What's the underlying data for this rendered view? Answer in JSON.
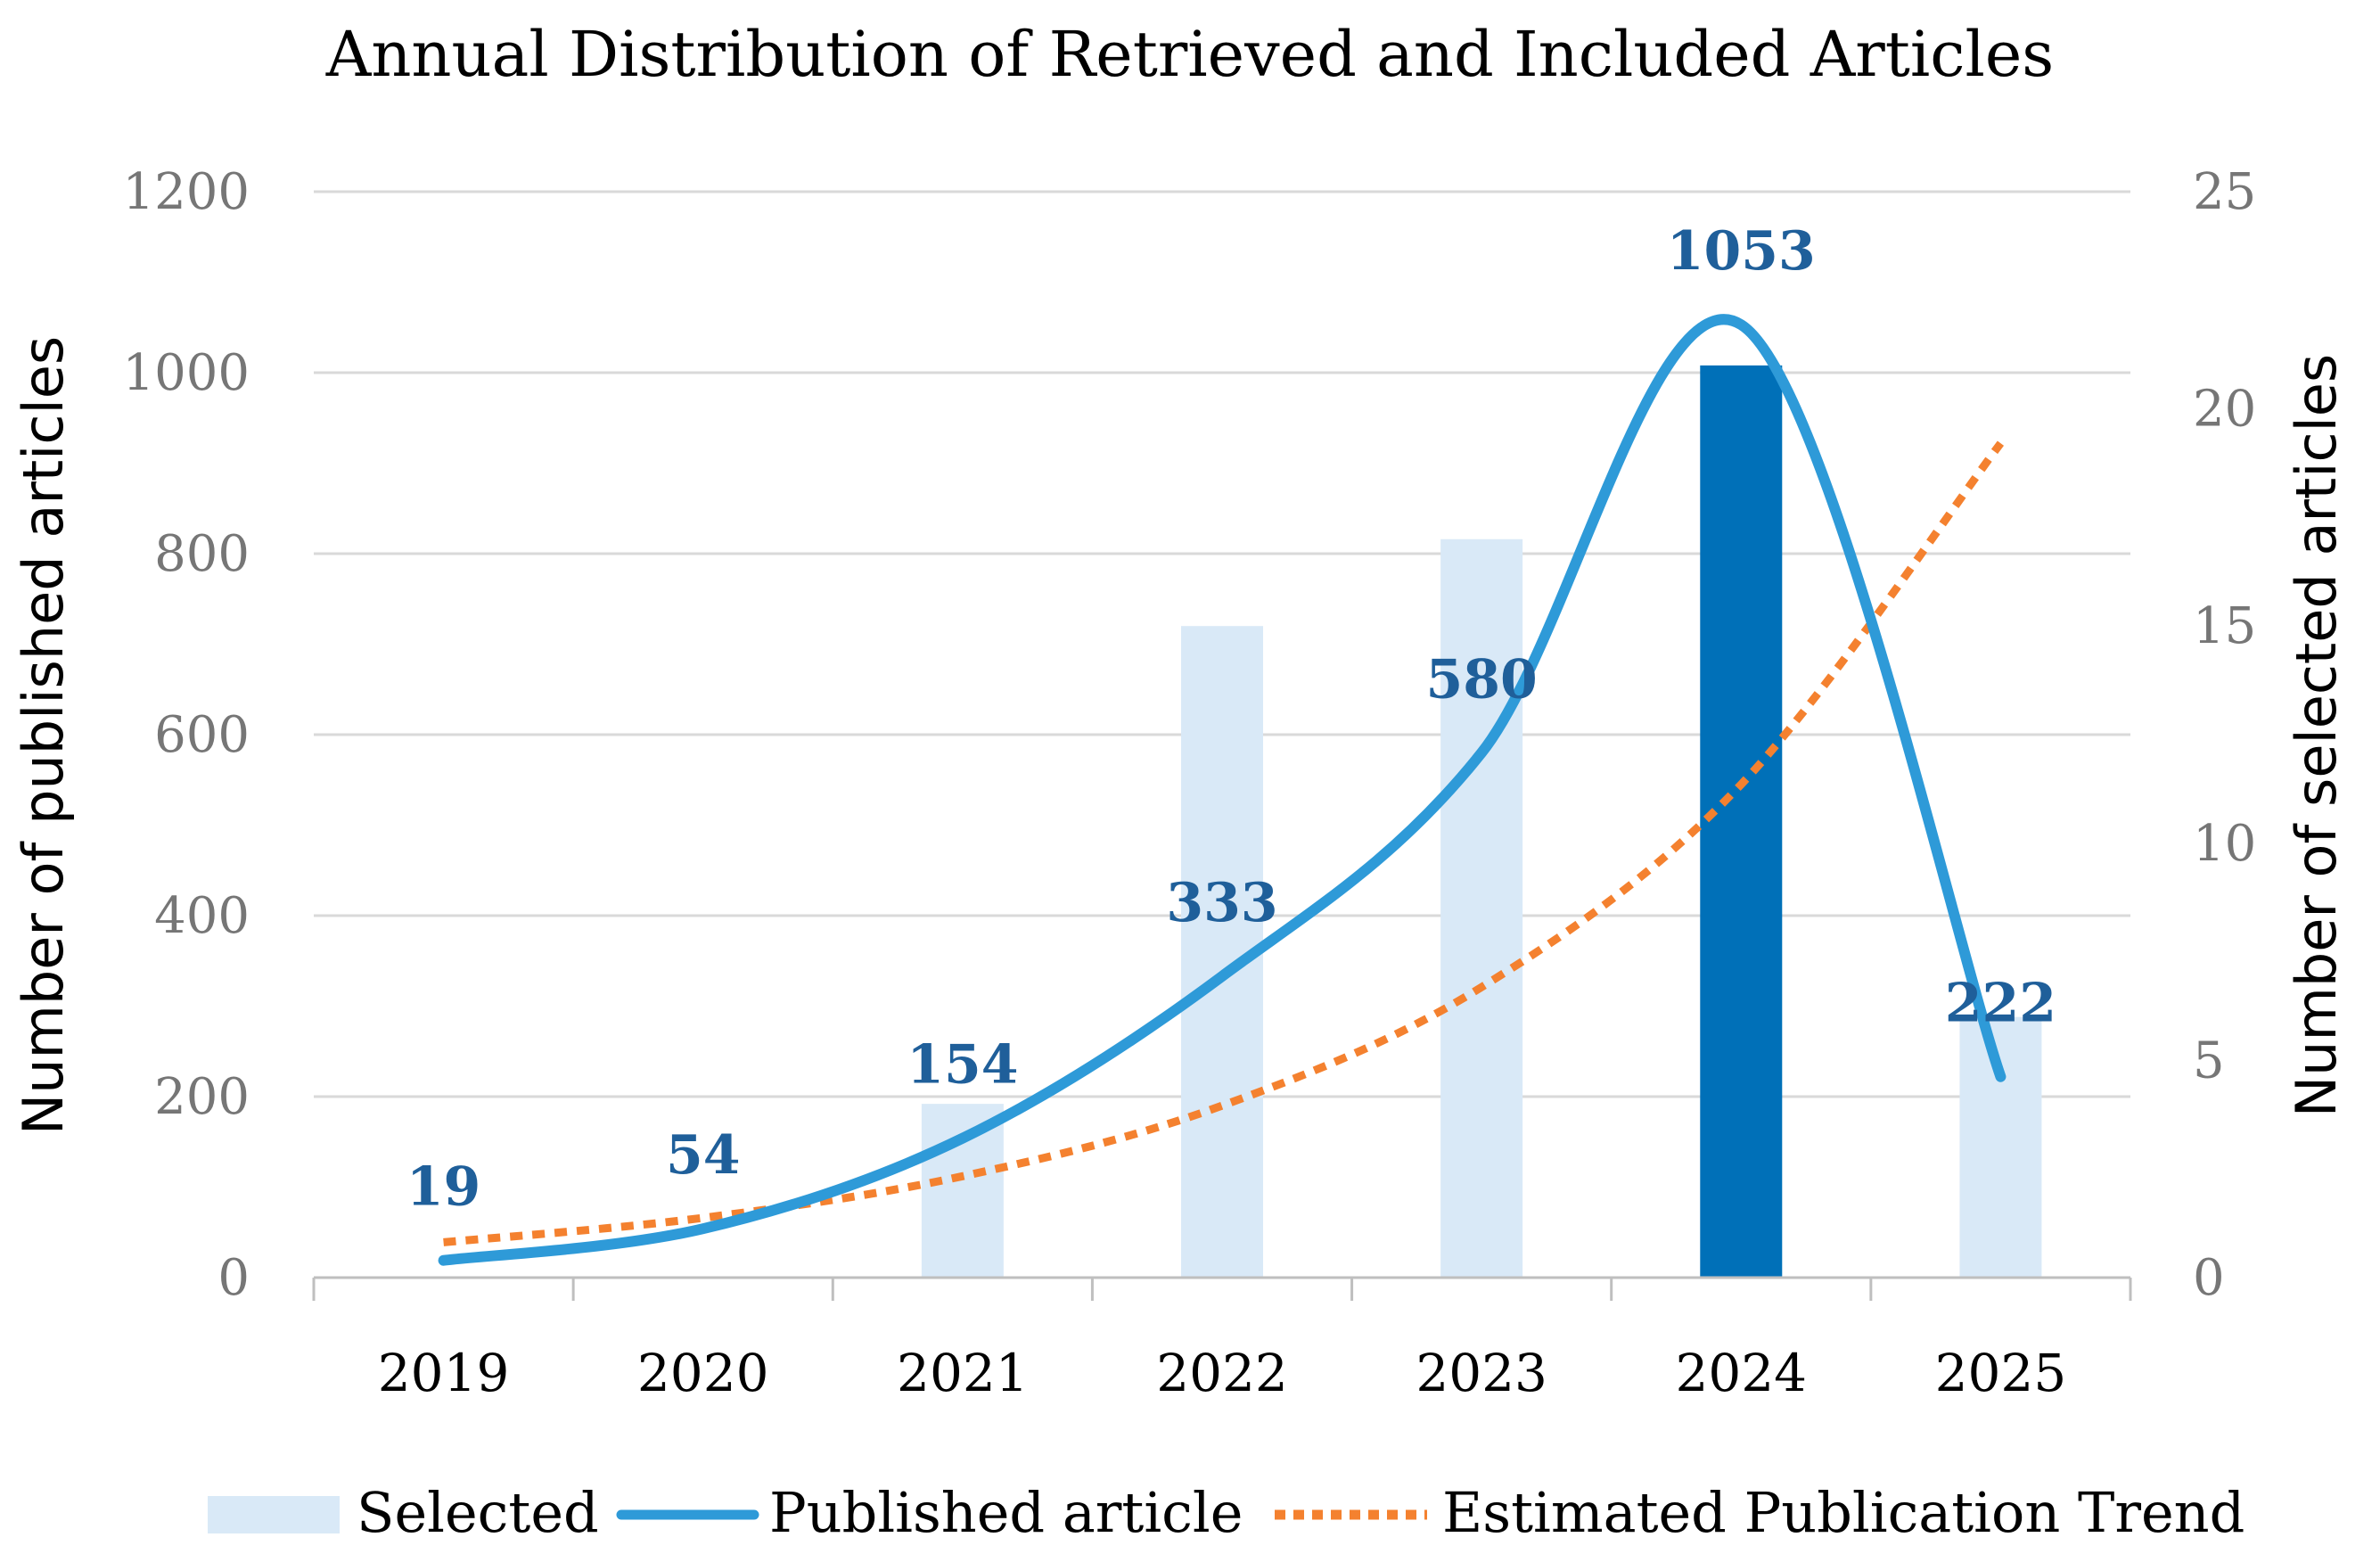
{
  "chart_data": {
    "type": "bar+line",
    "title": "Annual Distribution of Retrieved and Included Articles",
    "categories": [
      "2019",
      "2020",
      "2021",
      "2022",
      "2023",
      "2024",
      "2025"
    ],
    "ylabel_left": "Number of published articles",
    "ylabel_right": "Number of selected articles",
    "left_ticks": [
      "0",
      "200",
      "400",
      "600",
      "800",
      "1000",
      "1200"
    ],
    "right_ticks": [
      "0",
      "5",
      "10",
      "15",
      "20",
      "25"
    ],
    "ylim_left": [
      0,
      1200
    ],
    "ylim_right": [
      0,
      25
    ],
    "grid": true,
    "legend_position": "bottom",
    "series": [
      {
        "name": "Selected",
        "kind": "bar",
        "axis": "right",
        "values": [
          0,
          0,
          4,
          15,
          17,
          21,
          6
        ],
        "color": "#d9e9f7",
        "highlight_index": 5,
        "highlight_color": "#0070b8"
      },
      {
        "name": "Published article",
        "kind": "line",
        "axis": "left",
        "values": [
          19,
          54,
          154,
          333,
          580,
          1053,
          222
        ],
        "labels": [
          "19",
          "54",
          "154",
          "333",
          "580",
          "1053",
          "222"
        ],
        "color": "#2e9ad8"
      },
      {
        "name": "Estimated Publication Trend",
        "kind": "line-dashed",
        "axis": "left",
        "values": [
          39,
          66,
          112,
          190,
          321,
          545,
          922
        ],
        "color": "#f4812f"
      }
    ],
    "label_color": "#1f5f9a"
  }
}
